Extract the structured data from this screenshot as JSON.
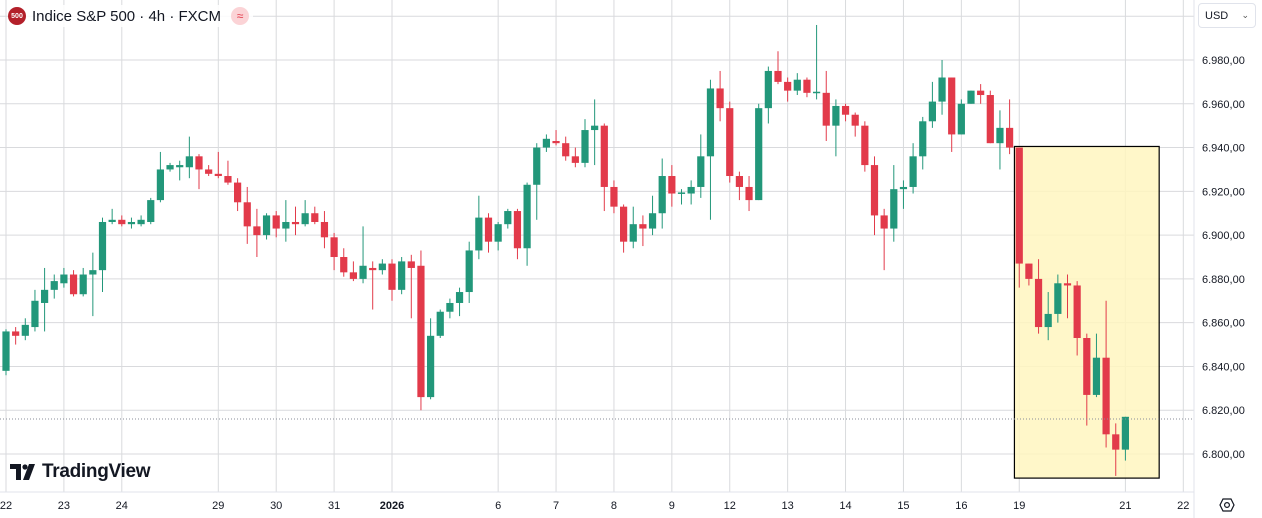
{
  "header": {
    "logo_text": "500",
    "title": "Indice S&P 500 · 4h · FXCM",
    "badge_icon": "approx-icon"
  },
  "currency_selector": {
    "value": "USD"
  },
  "branding": {
    "text": "TradingView"
  },
  "colors": {
    "up": "#22977a",
    "down": "#e23a4a",
    "grid": "#d9dadd",
    "highlight_fill": "#fff6bf",
    "highlight_border": "#000000"
  },
  "chart_data": {
    "type": "candlestick",
    "title": "Indice S&P 500 · 4h · FXCM",
    "ylim": [
      6786,
      7005
    ],
    "y_ticks": [
      {
        "value": 6980,
        "label": "6.980,00"
      },
      {
        "value": 6960,
        "label": "6.960,00"
      },
      {
        "value": 6940,
        "label": "6.940,00"
      },
      {
        "value": 6920,
        "label": "6.920,00"
      },
      {
        "value": 6900,
        "label": "6.900,00"
      },
      {
        "value": 6880,
        "label": "6.880,00"
      },
      {
        "value": 6860,
        "label": "6.860,00"
      },
      {
        "value": 6840,
        "label": "6.840,00"
      },
      {
        "value": 6820,
        "label": "6.820,00"
      },
      {
        "value": 6800,
        "label": "6.800,00"
      }
    ],
    "x_ticks": [
      {
        "label": "22",
        "bar": 1
      },
      {
        "label": "23",
        "bar": 7
      },
      {
        "label": "24",
        "bar": 13
      },
      {
        "label": "29",
        "bar": 23
      },
      {
        "label": "30",
        "bar": 29
      },
      {
        "label": "31",
        "bar": 35
      },
      {
        "label": "2026",
        "bar": 41,
        "bold": true
      },
      {
        "label": "6",
        "bar": 52
      },
      {
        "label": "7",
        "bar": 58
      },
      {
        "label": "8",
        "bar": 64
      },
      {
        "label": "9",
        "bar": 70
      },
      {
        "label": "12",
        "bar": 76
      },
      {
        "label": "13",
        "bar": 82
      },
      {
        "label": "14",
        "bar": 88
      },
      {
        "label": "15",
        "bar": 94
      },
      {
        "label": "16",
        "bar": 100
      },
      {
        "label": "19",
        "bar": 106
      },
      {
        "label": "21",
        "bar": 117
      },
      {
        "label": "22",
        "bar": 123
      }
    ],
    "current_price": 6816,
    "highlight_box": {
      "from_bar": 105.5,
      "to_bar": 120.5,
      "price_top": 6940.5,
      "price_bottom": 6789
    },
    "candles_ohlc": [
      [
        6831,
        6840,
        6826,
        6838
      ],
      [
        6838,
        6857,
        6836,
        6856
      ],
      [
        6856,
        6858,
        6850,
        6854
      ],
      [
        6854,
        6862,
        6852,
        6859
      ],
      [
        6858,
        6875,
        6856,
        6870
      ],
      [
        6869,
        6885,
        6856,
        6875
      ],
      [
        6875,
        6882,
        6871,
        6879
      ],
      [
        6878,
        6885,
        6876,
        6882
      ],
      [
        6882,
        6884,
        6872,
        6873
      ],
      [
        6873,
        6885,
        6872,
        6882
      ],
      [
        6882,
        6892,
        6863,
        6884
      ],
      [
        6884,
        6908,
        6874,
        6906
      ],
      [
        6906,
        6912,
        6905,
        6907
      ],
      [
        6907,
        6909,
        6904,
        6905
      ],
      [
        6905,
        6908,
        6903,
        6906
      ],
      [
        6905,
        6909,
        6904,
        6907
      ],
      [
        6906,
        6917,
        6905,
        6916
      ],
      [
        6916,
        6938,
        6915,
        6930
      ],
      [
        6930,
        6933,
        6929,
        6932
      ],
      [
        6931,
        6934,
        6925,
        6932
      ],
      [
        6931,
        6945,
        6926,
        6936
      ],
      [
        6936,
        6937,
        6921,
        6930
      ],
      [
        6930,
        6932,
        6927,
        6928
      ],
      [
        6928,
        6938,
        6926,
        6927
      ],
      [
        6927,
        6934,
        6923,
        6924
      ],
      [
        6924,
        6926,
        6911,
        6915
      ],
      [
        6915,
        6922,
        6896,
        6904
      ],
      [
        6904,
        6912,
        6890,
        6900
      ],
      [
        6900,
        6910,
        6898,
        6909
      ],
      [
        6909,
        6911,
        6899,
        6903
      ],
      [
        6903,
        6916,
        6897,
        6906
      ],
      [
        6906,
        6913,
        6900,
        6905
      ],
      [
        6905,
        6916,
        6904,
        6910
      ],
      [
        6910,
        6913,
        6905,
        6906
      ],
      [
        6906,
        6911,
        6894,
        6899
      ],
      [
        6899,
        6901,
        6884,
        6890
      ],
      [
        6890,
        6894,
        6881,
        6883
      ],
      [
        6883,
        6888,
        6879,
        6880
      ],
      [
        6880,
        6904,
        6878,
        6886
      ],
      [
        6885,
        6888,
        6866,
        6884
      ],
      [
        6884,
        6889,
        6882,
        6887
      ],
      [
        6887,
        6889,
        6870,
        6875
      ],
      [
        6875,
        6890,
        6873,
        6888
      ],
      [
        6888,
        6891,
        6862,
        6885
      ],
      [
        6886,
        6893,
        6820,
        6826
      ],
      [
        6826,
        6862,
        6825,
        6854
      ],
      [
        6854,
        6866,
        6853,
        6865
      ],
      [
        6865,
        6871,
        6862,
        6869
      ],
      [
        6869,
        6876,
        6863,
        6874
      ],
      [
        6874,
        6897,
        6869,
        6893
      ],
      [
        6893,
        6918,
        6889,
        6908
      ],
      [
        6908,
        6910,
        6892,
        6897
      ],
      [
        6897,
        6906,
        6893,
        6905
      ],
      [
        6905,
        6912,
        6903,
        6911
      ],
      [
        6911,
        6912,
        6889,
        6894
      ],
      [
        6894,
        6924,
        6886,
        6923
      ],
      [
        6923,
        6942,
        6907,
        6940
      ],
      [
        6940,
        6946,
        6938,
        6944
      ],
      [
        6943,
        6948,
        6941,
        6942
      ],
      [
        6942,
        6945,
        6934,
        6936
      ],
      [
        6936,
        6940,
        6931,
        6933
      ],
      [
        6933,
        6953,
        6931,
        6948
      ],
      [
        6948,
        6962,
        6932,
        6950
      ],
      [
        6950,
        6951,
        6911,
        6922
      ],
      [
        6922,
        6925,
        6910,
        6913
      ],
      [
        6913,
        6914,
        6892,
        6897
      ],
      [
        6897,
        6913,
        6894,
        6905
      ],
      [
        6905,
        6909,
        6895,
        6903
      ],
      [
        6903,
        6918,
        6900,
        6910
      ],
      [
        6910,
        6935,
        6903,
        6927
      ],
      [
        6927,
        6932,
        6913,
        6919
      ],
      [
        6919,
        6921,
        6914,
        6919.5
      ],
      [
        6919,
        6925,
        6914,
        6922
      ],
      [
        6922,
        6946,
        6917,
        6936
      ],
      [
        6936,
        6971,
        6907,
        6967
      ],
      [
        6967,
        6975,
        6952,
        6958
      ],
      [
        6958,
        6961,
        6924,
        6927
      ],
      [
        6927,
        6929,
        6916,
        6922
      ],
      [
        6922,
        6927,
        6911,
        6916
      ],
      [
        6916,
        6960,
        6916,
        6958
      ],
      [
        6958,
        6977,
        6951,
        6975
      ],
      [
        6975,
        6984,
        6969,
        6970
      ],
      [
        6970,
        6972,
        6961,
        6966
      ],
      [
        6966,
        6974,
        6964,
        6971
      ],
      [
        6971,
        6972,
        6963,
        6965
      ],
      [
        6965,
        6996,
        6962,
        6965.5
      ],
      [
        6965,
        6975,
        6943,
        6950
      ],
      [
        6950,
        6962,
        6936,
        6959
      ],
      [
        6959,
        6960,
        6952,
        6955
      ],
      [
        6955,
        6956,
        6945,
        6950
      ],
      [
        6950,
        6952,
        6929,
        6932
      ],
      [
        6932,
        6936,
        6900,
        6909
      ],
      [
        6909,
        6912,
        6884,
        6903
      ],
      [
        6903,
        6932,
        6897,
        6921
      ],
      [
        6921,
        6925,
        6912,
        6922
      ],
      [
        6922,
        6942,
        6919,
        6936
      ],
      [
        6936,
        6954,
        6930,
        6952
      ],
      [
        6952,
        6970,
        6949,
        6961
      ],
      [
        6961,
        6980,
        6955,
        6972
      ],
      [
        6972,
        6972,
        6938,
        6946
      ],
      [
        6946,
        6962,
        6946,
        6960
      ],
      [
        6960,
        6966,
        6960,
        6966
      ],
      [
        6966,
        6969,
        6960,
        6964
      ],
      [
        6964,
        6966,
        6942,
        6942
      ],
      [
        6942,
        6957,
        6930,
        6949
      ],
      [
        6949,
        6962,
        6937,
        6940
      ],
      [
        6940,
        6940,
        6876,
        6887
      ],
      [
        6887,
        6887,
        6877,
        6880
      ],
      [
        6880,
        6889,
        6855,
        6858
      ],
      [
        6858,
        6874,
        6852,
        6864
      ],
      [
        6864,
        6882,
        6860,
        6878
      ],
      [
        6878,
        6882,
        6862,
        6877
      ],
      [
        6877,
        6879,
        6845,
        6853
      ],
      [
        6853,
        6855,
        6813,
        6827
      ],
      [
        6827,
        6855,
        6826,
        6844
      ],
      [
        6844,
        6870,
        6803,
        6809
      ],
      [
        6809,
        6814,
        6790,
        6802
      ],
      [
        6802,
        6817,
        6797,
        6817
      ]
    ]
  }
}
